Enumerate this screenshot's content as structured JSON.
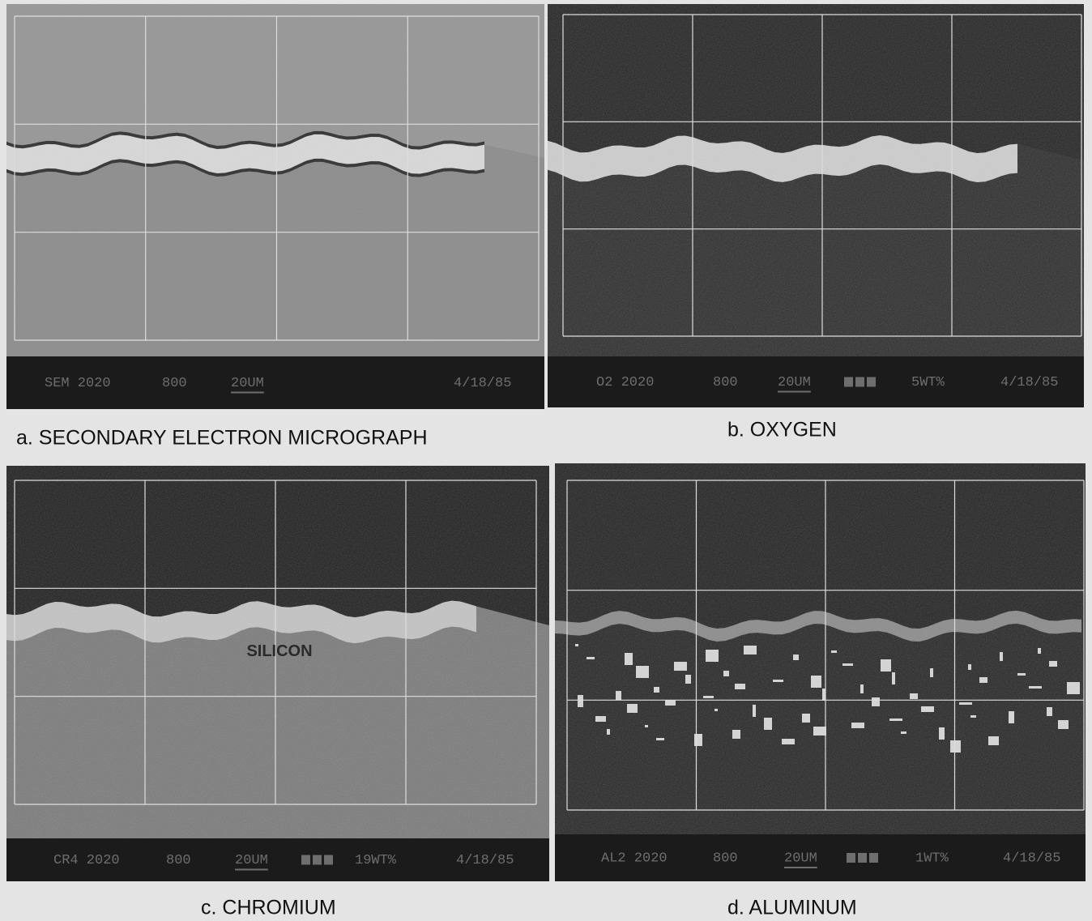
{
  "panels": [
    {
      "caption": "a. SECONDARY ELECTRON MICROGRAPH",
      "info": [
        "SEM 2020",
        "800",
        "20UM",
        "4/18/85"
      ]
    },
    {
      "caption": "b. OXYGEN",
      "info": [
        "O2 2020",
        "800",
        "20UM",
        "5WT%",
        "4/18/85"
      ]
    },
    {
      "caption": "c. CHROMIUM",
      "info": [
        "CR4 2020",
        "800",
        "20UM",
        "19WT%",
        "4/18/85"
      ],
      "label": "SILICON"
    },
    {
      "caption": "d. ALUMINUM",
      "info": [
        "AL2 2020",
        "800",
        "20UM",
        "1WT%",
        "4/18/85"
      ]
    }
  ]
}
